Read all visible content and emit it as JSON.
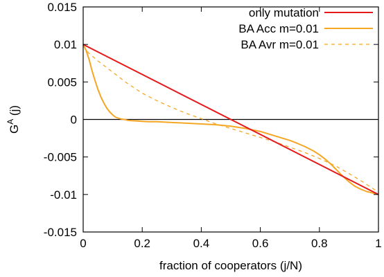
{
  "chart_data": {
    "type": "line",
    "title": "",
    "xlabel": "fraction of cooperators (j/N)",
    "ylabel_base": "G",
    "ylabel_sup": "A",
    "ylabel_arg": " (j)",
    "xlim": [
      0,
      1
    ],
    "ylim": [
      -0.015,
      0.015
    ],
    "xticks": [
      0,
      0.2,
      0.4,
      0.6,
      0.8,
      1
    ],
    "xtick_labels": [
      "0",
      "0.2",
      "0.4",
      "0.6",
      "0.8",
      "1"
    ],
    "yticks": [
      -0.015,
      -0.01,
      -0.005,
      0,
      0.005,
      0.01,
      0.015
    ],
    "ytick_labels": [
      "-0.015",
      "-0.01",
      "-0.005",
      "0",
      "0.005",
      "0.01",
      "0.015"
    ],
    "grid": false,
    "zero_line": true,
    "legend_position": "top-right",
    "series": [
      {
        "name": "only mutation",
        "color": "#e41a1c",
        "style": "solid",
        "x": [
          0,
          1
        ],
        "y": [
          0.01,
          -0.01
        ]
      },
      {
        "name": "BA Acc m=0.01",
        "color": "#f5a623",
        "style": "solid",
        "x": [
          0,
          0.01,
          0.02,
          0.03,
          0.04,
          0.05,
          0.06,
          0.07,
          0.08,
          0.09,
          0.1,
          0.11,
          0.12,
          0.13,
          0.14,
          0.15,
          0.16,
          0.18,
          0.2,
          0.22,
          0.25,
          0.3,
          0.35,
          0.4,
          0.45,
          0.5,
          0.55,
          0.6,
          0.65,
          0.7,
          0.72,
          0.75,
          0.78,
          0.8,
          0.82,
          0.84,
          0.86,
          0.88,
          0.9,
          0.92,
          0.94,
          0.96,
          0.98,
          1.0
        ],
        "y": [
          0.01,
          0.0092,
          0.008,
          0.0065,
          0.0052,
          0.004,
          0.003,
          0.0022,
          0.0015,
          0.001,
          0.0006,
          0.0003,
          0.00015,
          5e-05,
          0.0,
          -0.0001,
          -0.00015,
          -0.0002,
          -0.00025,
          -0.0003,
          -0.0003,
          -0.0004,
          -0.0005,
          -0.0006,
          -0.0007,
          -0.0009,
          -0.0012,
          -0.0016,
          -0.0022,
          -0.0028,
          -0.0031,
          -0.0036,
          -0.0042,
          -0.0047,
          -0.0053,
          -0.006,
          -0.0068,
          -0.0076,
          -0.0083,
          -0.0089,
          -0.0093,
          -0.0096,
          -0.0098,
          -0.01
        ]
      },
      {
        "name": "BA Avr m=0.01",
        "color": "#f5a623",
        "style": "dashed",
        "x": [
          0,
          0.02,
          0.05,
          0.1,
          0.15,
          0.2,
          0.25,
          0.3,
          0.35,
          0.4,
          0.45,
          0.5,
          0.55,
          0.6,
          0.65,
          0.7,
          0.75,
          0.8,
          0.85,
          0.9,
          0.95,
          1.0
        ],
        "y": [
          0.0098,
          0.0088,
          0.0078,
          0.0063,
          0.0048,
          0.0035,
          0.0025,
          0.0016,
          0.0008,
          0.0001,
          -0.0006,
          -0.0012,
          -0.0018,
          -0.0024,
          -0.003,
          -0.0037,
          -0.0044,
          -0.0052,
          -0.0061,
          -0.0072,
          -0.0084,
          -0.0097
        ]
      }
    ]
  }
}
